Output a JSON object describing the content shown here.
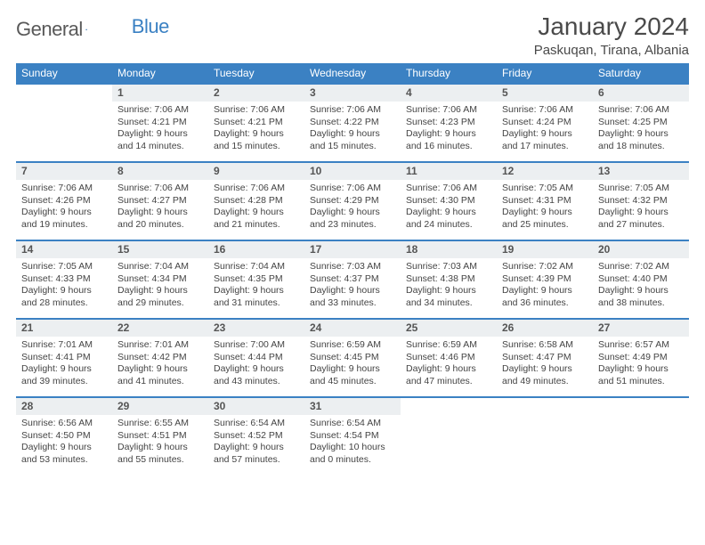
{
  "logo": {
    "text1": "General",
    "text2": "Blue"
  },
  "title": "January 2024",
  "location": "Paskuqan, Tirana, Albania",
  "colors": {
    "header_bg": "#3b81c3",
    "header_text": "#ffffff",
    "daynum_bg": "#eceff1",
    "week_border": "#3b81c3",
    "text": "#444444",
    "title_text": "#4a4a4a"
  },
  "day_headers": [
    "Sunday",
    "Monday",
    "Tuesday",
    "Wednesday",
    "Thursday",
    "Friday",
    "Saturday"
  ],
  "weeks": [
    [
      {
        "day": "",
        "lines": []
      },
      {
        "day": "1",
        "lines": [
          "Sunrise: 7:06 AM",
          "Sunset: 4:21 PM",
          "Daylight: 9 hours",
          "and 14 minutes."
        ]
      },
      {
        "day": "2",
        "lines": [
          "Sunrise: 7:06 AM",
          "Sunset: 4:21 PM",
          "Daylight: 9 hours",
          "and 15 minutes."
        ]
      },
      {
        "day": "3",
        "lines": [
          "Sunrise: 7:06 AM",
          "Sunset: 4:22 PM",
          "Daylight: 9 hours",
          "and 15 minutes."
        ]
      },
      {
        "day": "4",
        "lines": [
          "Sunrise: 7:06 AM",
          "Sunset: 4:23 PM",
          "Daylight: 9 hours",
          "and 16 minutes."
        ]
      },
      {
        "day": "5",
        "lines": [
          "Sunrise: 7:06 AM",
          "Sunset: 4:24 PM",
          "Daylight: 9 hours",
          "and 17 minutes."
        ]
      },
      {
        "day": "6",
        "lines": [
          "Sunrise: 7:06 AM",
          "Sunset: 4:25 PM",
          "Daylight: 9 hours",
          "and 18 minutes."
        ]
      }
    ],
    [
      {
        "day": "7",
        "lines": [
          "Sunrise: 7:06 AM",
          "Sunset: 4:26 PM",
          "Daylight: 9 hours",
          "and 19 minutes."
        ]
      },
      {
        "day": "8",
        "lines": [
          "Sunrise: 7:06 AM",
          "Sunset: 4:27 PM",
          "Daylight: 9 hours",
          "and 20 minutes."
        ]
      },
      {
        "day": "9",
        "lines": [
          "Sunrise: 7:06 AM",
          "Sunset: 4:28 PM",
          "Daylight: 9 hours",
          "and 21 minutes."
        ]
      },
      {
        "day": "10",
        "lines": [
          "Sunrise: 7:06 AM",
          "Sunset: 4:29 PM",
          "Daylight: 9 hours",
          "and 23 minutes."
        ]
      },
      {
        "day": "11",
        "lines": [
          "Sunrise: 7:06 AM",
          "Sunset: 4:30 PM",
          "Daylight: 9 hours",
          "and 24 minutes."
        ]
      },
      {
        "day": "12",
        "lines": [
          "Sunrise: 7:05 AM",
          "Sunset: 4:31 PM",
          "Daylight: 9 hours",
          "and 25 minutes."
        ]
      },
      {
        "day": "13",
        "lines": [
          "Sunrise: 7:05 AM",
          "Sunset: 4:32 PM",
          "Daylight: 9 hours",
          "and 27 minutes."
        ]
      }
    ],
    [
      {
        "day": "14",
        "lines": [
          "Sunrise: 7:05 AM",
          "Sunset: 4:33 PM",
          "Daylight: 9 hours",
          "and 28 minutes."
        ]
      },
      {
        "day": "15",
        "lines": [
          "Sunrise: 7:04 AM",
          "Sunset: 4:34 PM",
          "Daylight: 9 hours",
          "and 29 minutes."
        ]
      },
      {
        "day": "16",
        "lines": [
          "Sunrise: 7:04 AM",
          "Sunset: 4:35 PM",
          "Daylight: 9 hours",
          "and 31 minutes."
        ]
      },
      {
        "day": "17",
        "lines": [
          "Sunrise: 7:03 AM",
          "Sunset: 4:37 PM",
          "Daylight: 9 hours",
          "and 33 minutes."
        ]
      },
      {
        "day": "18",
        "lines": [
          "Sunrise: 7:03 AM",
          "Sunset: 4:38 PM",
          "Daylight: 9 hours",
          "and 34 minutes."
        ]
      },
      {
        "day": "19",
        "lines": [
          "Sunrise: 7:02 AM",
          "Sunset: 4:39 PM",
          "Daylight: 9 hours",
          "and 36 minutes."
        ]
      },
      {
        "day": "20",
        "lines": [
          "Sunrise: 7:02 AM",
          "Sunset: 4:40 PM",
          "Daylight: 9 hours",
          "and 38 minutes."
        ]
      }
    ],
    [
      {
        "day": "21",
        "lines": [
          "Sunrise: 7:01 AM",
          "Sunset: 4:41 PM",
          "Daylight: 9 hours",
          "and 39 minutes."
        ]
      },
      {
        "day": "22",
        "lines": [
          "Sunrise: 7:01 AM",
          "Sunset: 4:42 PM",
          "Daylight: 9 hours",
          "and 41 minutes."
        ]
      },
      {
        "day": "23",
        "lines": [
          "Sunrise: 7:00 AM",
          "Sunset: 4:44 PM",
          "Daylight: 9 hours",
          "and 43 minutes."
        ]
      },
      {
        "day": "24",
        "lines": [
          "Sunrise: 6:59 AM",
          "Sunset: 4:45 PM",
          "Daylight: 9 hours",
          "and 45 minutes."
        ]
      },
      {
        "day": "25",
        "lines": [
          "Sunrise: 6:59 AM",
          "Sunset: 4:46 PM",
          "Daylight: 9 hours",
          "and 47 minutes."
        ]
      },
      {
        "day": "26",
        "lines": [
          "Sunrise: 6:58 AM",
          "Sunset: 4:47 PM",
          "Daylight: 9 hours",
          "and 49 minutes."
        ]
      },
      {
        "day": "27",
        "lines": [
          "Sunrise: 6:57 AM",
          "Sunset: 4:49 PM",
          "Daylight: 9 hours",
          "and 51 minutes."
        ]
      }
    ],
    [
      {
        "day": "28",
        "lines": [
          "Sunrise: 6:56 AM",
          "Sunset: 4:50 PM",
          "Daylight: 9 hours",
          "and 53 minutes."
        ]
      },
      {
        "day": "29",
        "lines": [
          "Sunrise: 6:55 AM",
          "Sunset: 4:51 PM",
          "Daylight: 9 hours",
          "and 55 minutes."
        ]
      },
      {
        "day": "30",
        "lines": [
          "Sunrise: 6:54 AM",
          "Sunset: 4:52 PM",
          "Daylight: 9 hours",
          "and 57 minutes."
        ]
      },
      {
        "day": "31",
        "lines": [
          "Sunrise: 6:54 AM",
          "Sunset: 4:54 PM",
          "Daylight: 10 hours",
          "and 0 minutes."
        ]
      },
      {
        "day": "",
        "lines": []
      },
      {
        "day": "",
        "lines": []
      },
      {
        "day": "",
        "lines": []
      }
    ]
  ]
}
